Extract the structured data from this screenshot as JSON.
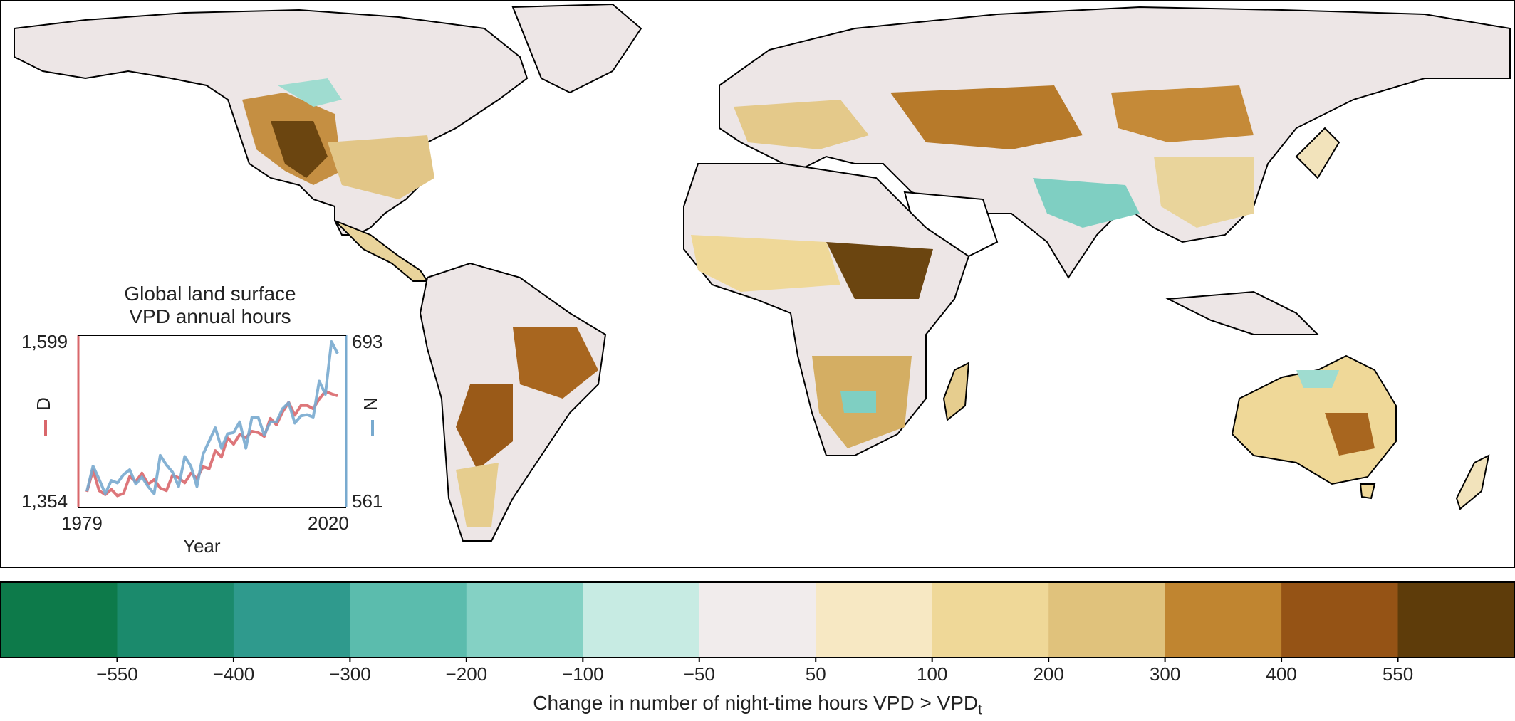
{
  "inset": {
    "title_line1": "Global land surface",
    "title_line2": "VPD annual hours",
    "left_max": "1,599",
    "left_min": "1,354",
    "right_max": "693",
    "right_min": "561",
    "x_start": "1979",
    "x_end": "2020",
    "xlabel": "Year",
    "left_series_label": "D",
    "right_series_label": "N"
  },
  "colorbar": {
    "title": "Change in number of night-time hours VPD > VPD",
    "title_subscript": "t",
    "ticks": [
      "−550",
      "−400",
      "−300",
      "−200",
      "−100",
      "−50",
      "50",
      "100",
      "200",
      "300",
      "400",
      "550"
    ],
    "colors": [
      "#0d7a4a",
      "#1b8a6c",
      "#2f9a8d",
      "#5bbcad",
      "#84d1c4",
      "#c7ebe3",
      "#f1ecec",
      "#f7e8c3",
      "#efd898",
      "#e0c27c",
      "#c08530",
      "#955315",
      "#5e3c0a"
    ]
  },
  "chart_data": {
    "type": "line",
    "title": "Global land surface VPD annual hours",
    "xlabel": "Year",
    "x": [
      1979,
      1980,
      1981,
      1982,
      1983,
      1984,
      1985,
      1986,
      1987,
      1988,
      1989,
      1990,
      1991,
      1992,
      1993,
      1994,
      1995,
      1996,
      1997,
      1998,
      1999,
      2000,
      2001,
      2002,
      2003,
      2004,
      2005,
      2006,
      2007,
      2008,
      2009,
      2010,
      2011,
      2012,
      2013,
      2014,
      2015,
      2016,
      2017,
      2018,
      2019,
      2020
    ],
    "xlim": [
      1979,
      2020
    ],
    "series": [
      {
        "name": "D",
        "axis": "left",
        "color": "#d9676b",
        "ylim": [
          1354,
          1599
        ],
        "values": [
          1366,
          1400,
          1368,
          1362,
          1370,
          1360,
          1364,
          1390,
          1382,
          1395,
          1378,
          1385,
          1372,
          1368,
          1392,
          1388,
          1380,
          1395,
          1387,
          1405,
          1402,
          1430,
          1420,
          1450,
          1440,
          1455,
          1450,
          1460,
          1458,
          1452,
          1480,
          1470,
          1490,
          1505,
          1485,
          1500,
          1500,
          1495,
          1510,
          1522,
          1518,
          1515
        ]
      },
      {
        "name": "N",
        "axis": "right",
        "color": "#78aacf",
        "ylim": [
          561,
          693
        ],
        "values": [
          568,
          589,
          578,
          566,
          577,
          575,
          582,
          586,
          574,
          580,
          572,
          566,
          598,
          590,
          584,
          572,
          597,
          589,
          572,
          599,
          610,
          621,
          604,
          616,
          617,
          626,
          604,
          630,
          630,
          615,
          626,
          626,
          637,
          642,
          625,
          631,
          632,
          630,
          660,
          649,
          693,
          683
        ]
      }
    ]
  }
}
